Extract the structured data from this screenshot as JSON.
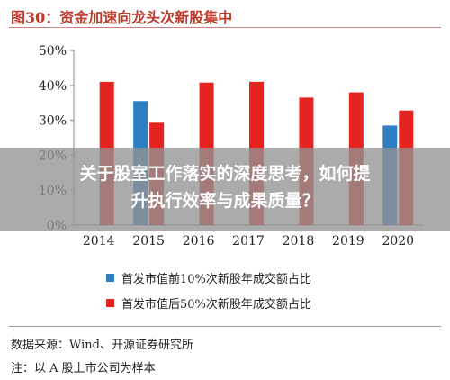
{
  "title": "图30：资金加速向龙头次新股集中",
  "overlay_text": [
    "关于股室工作落实的深度思考，如何提",
    "升执行效率与成果质量？"
  ],
  "source": "数据来源：Wind、开源证券研究所",
  "note": "注：以 A 股上市公司为样本",
  "colors": {
    "series1": "#2e7fc2",
    "series2": "#e52421",
    "title": "#c0392b"
  },
  "chart_data": {
    "type": "bar",
    "categories": [
      "2014",
      "2015",
      "2016",
      "2017",
      "2018",
      "2019",
      "2020"
    ],
    "series": [
      {
        "name": "首发市值前10%次新股年成交额占比",
        "values": [
          null,
          35.5,
          null,
          null,
          null,
          null,
          28.5
        ]
      },
      {
        "name": "首发市值后50%次新股年成交额占比",
        "values": [
          41.0,
          29.3,
          40.8,
          41.0,
          36.5,
          38.0,
          32.8
        ]
      }
    ],
    "y_tick_labels": [
      "0%",
      "10%",
      "20%",
      "30%",
      "40%",
      "50%"
    ],
    "ylim": [
      0,
      50
    ],
    "grid": false,
    "legend_position": "bottom"
  }
}
